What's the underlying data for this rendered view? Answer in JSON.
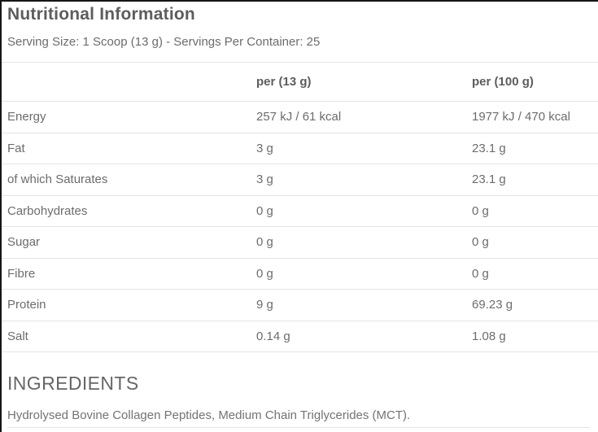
{
  "header": {
    "title": "Nutritional Information",
    "serving_info": "Serving Size: 1 Scoop (13 g) - Servings Per Container: 25"
  },
  "table": {
    "col_headers": {
      "per_serving": "per (13 g)",
      "per_100g": "per (100 g)"
    },
    "rows": [
      {
        "label": "Energy",
        "per_serving": "257 kJ / 61 kcal",
        "per_100g": "1977 kJ / 470 kcal"
      },
      {
        "label": "Fat",
        "per_serving": "3 g",
        "per_100g": "23.1 g"
      },
      {
        "label": "of which Saturates",
        "per_serving": "3 g",
        "per_100g": "23.1 g"
      },
      {
        "label": "Carbohydrates",
        "per_serving": "0 g",
        "per_100g": "0 g"
      },
      {
        "label": "Sugar",
        "per_serving": "0 g",
        "per_100g": "0 g"
      },
      {
        "label": "Fibre",
        "per_serving": "0 g",
        "per_100g": "0 g"
      },
      {
        "label": "Protein",
        "per_serving": "9 g",
        "per_100g": "69.23 g"
      },
      {
        "label": "Salt",
        "per_serving": "0.14 g",
        "per_100g": "1.08 g"
      }
    ]
  },
  "ingredients": {
    "heading": "INGREDIENTS",
    "text": "Hydrolysed Bovine Collagen Peptides, Medium Chain Triglycerides (MCT)."
  },
  "colors": {
    "heading_text": "#5d5d5d",
    "body_text": "#6c6c6c",
    "divider": "#e4e4e4",
    "frame_border": "#151515"
  }
}
